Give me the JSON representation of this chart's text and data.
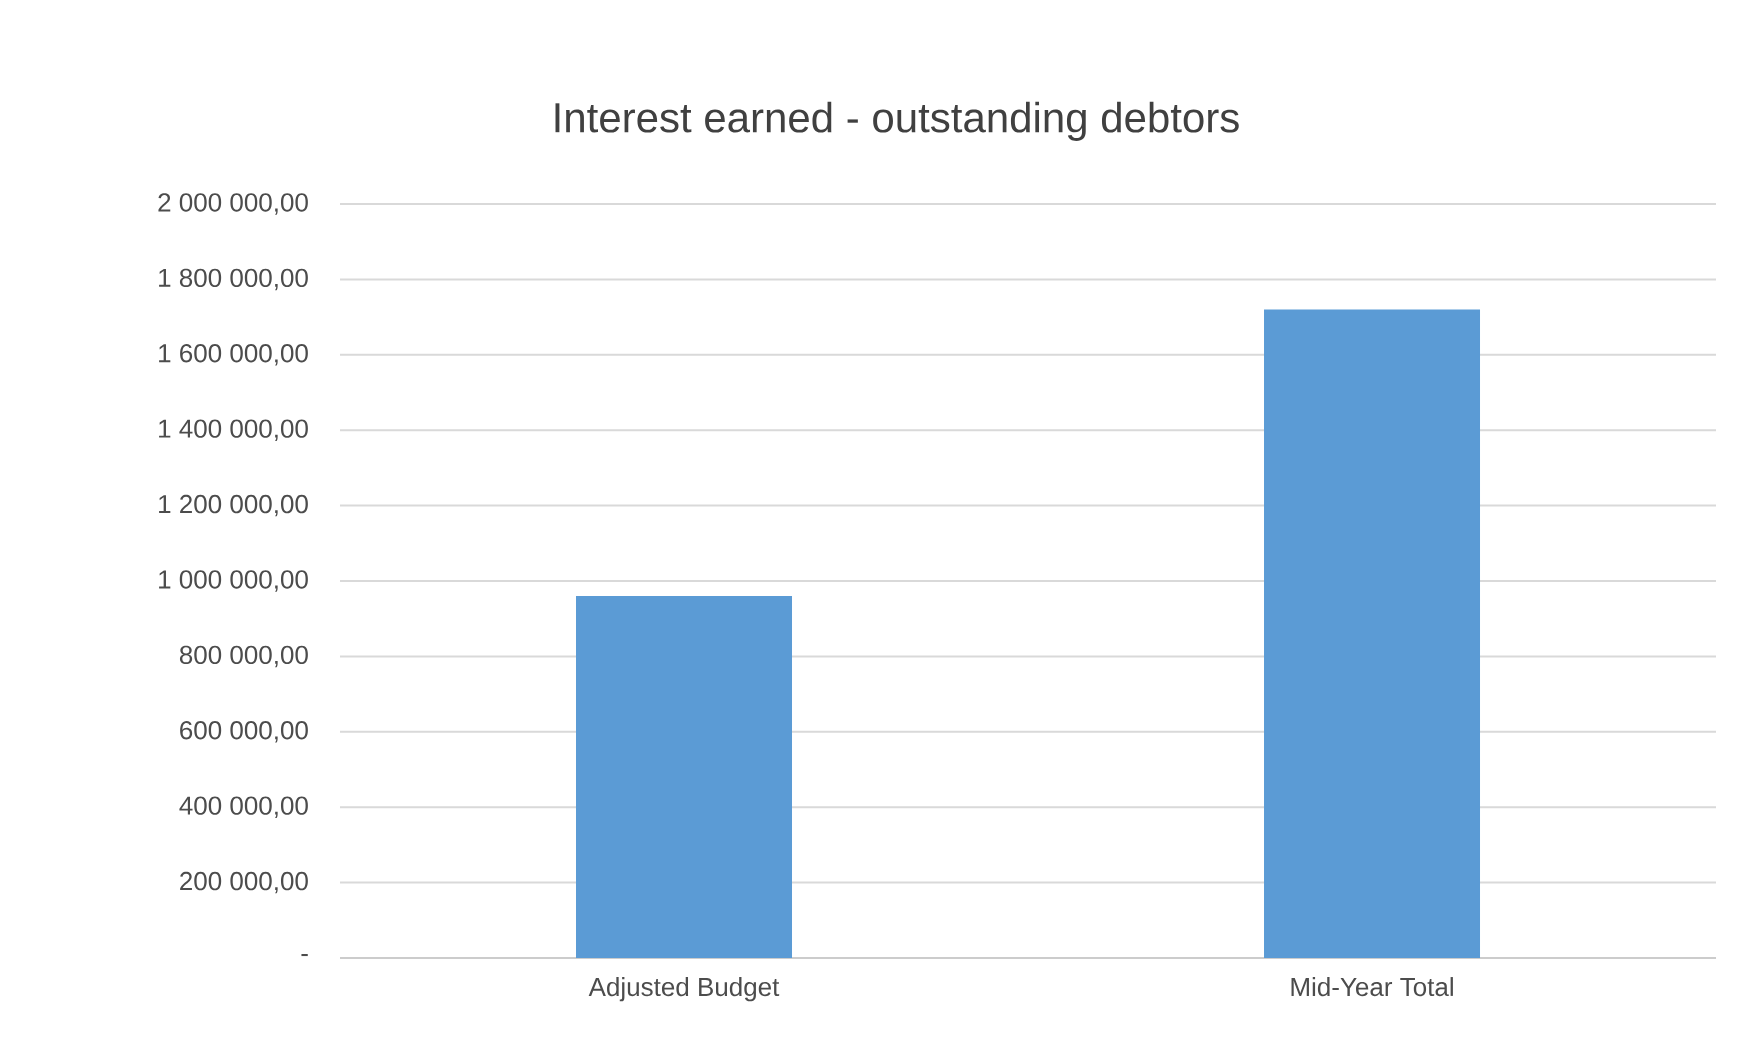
{
  "chart_data": {
    "type": "bar",
    "title": "Interest earned - outstanding debtors",
    "categories": [
      "Adjusted Budget",
      "Mid-Year Total"
    ],
    "values": [
      960000,
      1720000
    ],
    "color": "#5b9bd5",
    "ylim": [
      0,
      2000000
    ],
    "yticks": [
      {
        "value": 0,
        "label": "-"
      },
      {
        "value": 200000,
        "label": "200 000,00"
      },
      {
        "value": 400000,
        "label": "400 000,00"
      },
      {
        "value": 600000,
        "label": "600 000,00"
      },
      {
        "value": 800000,
        "label": "800 000,00"
      },
      {
        "value": 1000000,
        "label": "1 000 000,00"
      },
      {
        "value": 1200000,
        "label": "1 200 000,00"
      },
      {
        "value": 1400000,
        "label": "1 400 000,00"
      },
      {
        "value": 1600000,
        "label": "1 600 000,00"
      },
      {
        "value": 1800000,
        "label": "1 800 000,00"
      },
      {
        "value": 2000000,
        "label": "2 000 000,00"
      }
    ],
    "grid": "y"
  }
}
